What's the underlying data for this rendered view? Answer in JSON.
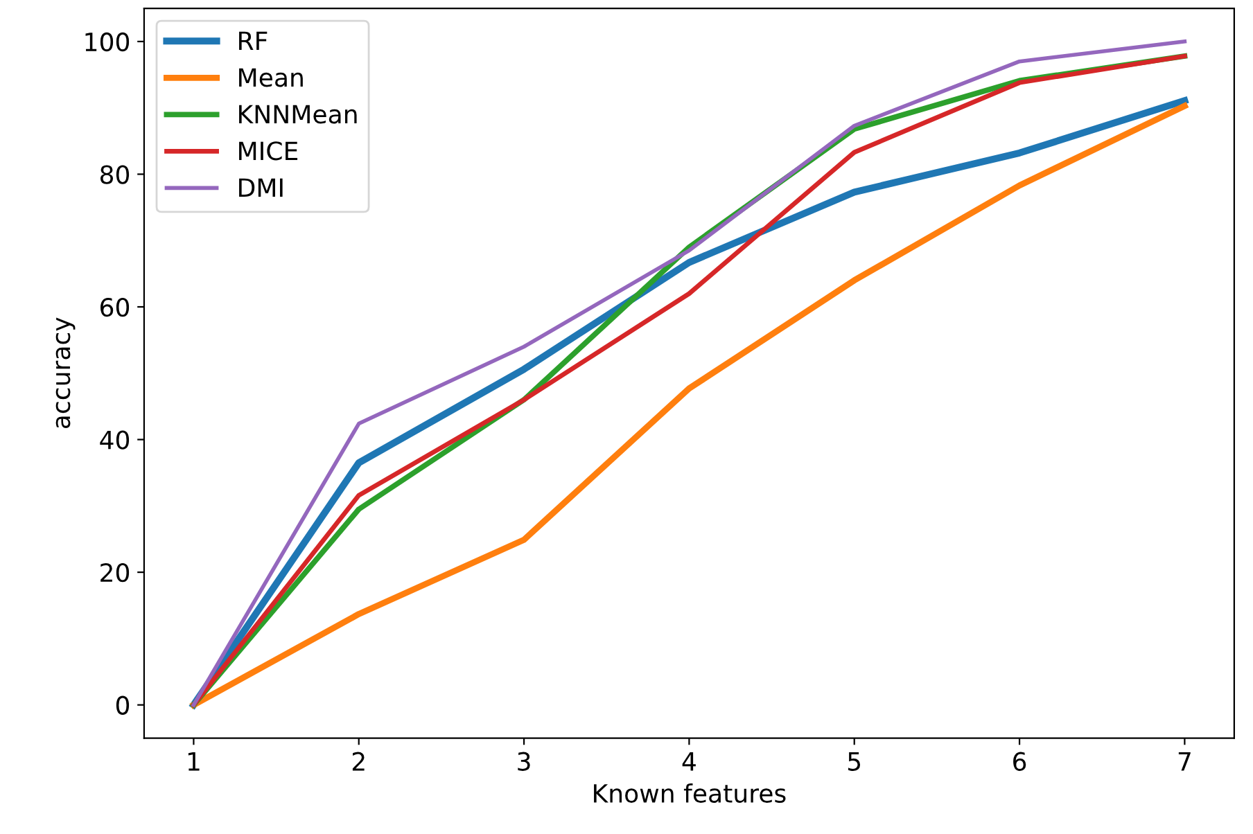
{
  "chart_data": {
    "type": "line",
    "xlabel": "Known features",
    "ylabel": "accuracy",
    "x": [
      1,
      2,
      3,
      4,
      5,
      6,
      7
    ],
    "series": [
      {
        "name": "RF",
        "color": "#1f77b4",
        "values": [
          0,
          36.5,
          50.6,
          66.7,
          77.3,
          83.2,
          91.1
        ]
      },
      {
        "name": "Mean",
        "color": "#ff7f0e",
        "values": [
          0,
          13.7,
          24.9,
          47.7,
          64,
          78.3,
          90.3
        ]
      },
      {
        "name": "KNNMean",
        "color": "#2ca02c",
        "values": [
          0,
          29.5,
          46,
          69,
          86.8,
          94.1,
          97.8
        ]
      },
      {
        "name": "MICE",
        "color": "#d62728",
        "values": [
          0,
          31.6,
          46,
          62,
          83.3,
          93.8,
          97.8
        ]
      },
      {
        "name": "DMI",
        "color": "#9467bd",
        "values": [
          0,
          42.4,
          54,
          68.5,
          87.3,
          97,
          100
        ]
      }
    ],
    "xlim": [
      0.7,
      7.3
    ],
    "xticks": [
      1,
      2,
      3,
      4,
      5,
      6,
      7
    ],
    "ylim": [
      -5,
      105
    ],
    "yticks": [
      0,
      20,
      40,
      60,
      80,
      100
    ],
    "grid": false,
    "legend": "top left",
    "marker": "none",
    "line_style": "solid"
  }
}
